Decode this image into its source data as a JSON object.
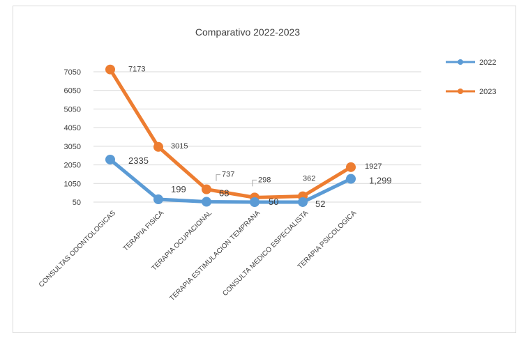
{
  "chart_data": {
    "type": "line",
    "title": "Comparativo  2022-2023",
    "categories": [
      "CONSULTAS ODONTOLOGICAS",
      "TERAPIA FISICA",
      "TERAPIA OCUPACIONAL",
      "TERAPIA ESTIMULACION TEMPRANA",
      "CONSULTA MEDICO ESPECIALISTA",
      "TERAPIA PSICOLOGICA"
    ],
    "yticks": [
      "50",
      "1050",
      "2050",
      "3050",
      "4050",
      "5050",
      "6050",
      "7050"
    ],
    "ylim": [
      50,
      7050
    ],
    "grid": true,
    "legend": "right",
    "series": [
      {
        "name": "2022",
        "color": "#5b9bd5",
        "values": [
          2335,
          199,
          68,
          50,
          52,
          1299
        ],
        "labels": [
          "2335",
          "199",
          "68",
          "50",
          "52",
          "1,299"
        ]
      },
      {
        "name": "2023",
        "color": "#ed7d31",
        "values": [
          7173,
          3015,
          737,
          298,
          362,
          1927
        ],
        "labels": [
          "7173",
          "3015",
          "737",
          "298",
          "362",
          "1927"
        ]
      }
    ]
  }
}
